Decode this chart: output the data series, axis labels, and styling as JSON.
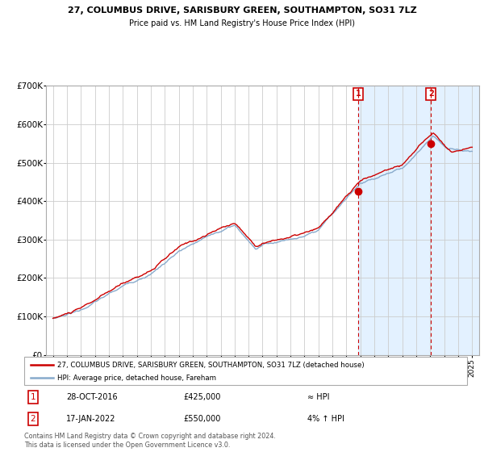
{
  "title": "27, COLUMBUS DRIVE, SARISBURY GREEN, SOUTHAMPTON, SO31 7LZ",
  "subtitle": "Price paid vs. HM Land Registry's House Price Index (HPI)",
  "legend_line1": "27, COLUMBUS DRIVE, SARISBURY GREEN, SOUTHAMPTON, SO31 7LZ (detached house)",
  "legend_line2": "HPI: Average price, detached house, Fareham",
  "annotation1_label": "1",
  "annotation1_date": "28-OCT-2016",
  "annotation1_price": "£425,000",
  "annotation1_hpi": "≈ HPI",
  "annotation2_label": "2",
  "annotation2_date": "17-JAN-2022",
  "annotation2_price": "£550,000",
  "annotation2_hpi": "4% ↑ HPI",
  "footer1": "Contains HM Land Registry data © Crown copyright and database right 2024.",
  "footer2": "This data is licensed under the Open Government Licence v3.0.",
  "hpi_line_color": "#88aacc",
  "price_line_color": "#cc0000",
  "marker_color": "#cc0000",
  "dashed_vline_color": "#cc0000",
  "bg_highlight_color": "#ddeeff",
  "annotation_box_color": "#cc0000",
  "grid_color": "#cccccc",
  "ylim": [
    0,
    700000
  ],
  "yticks": [
    0,
    100000,
    200000,
    300000,
    400000,
    500000,
    600000,
    700000
  ],
  "ytick_labels": [
    "£0",
    "£100K",
    "£200K",
    "£300K",
    "£400K",
    "£500K",
    "£600K",
    "£700K"
  ],
  "sale1_x": 2016.83,
  "sale1_y": 425000,
  "sale2_x": 2022.05,
  "sale2_y": 550000,
  "highlight_start": 2016.83,
  "highlight_end": 2025.5,
  "xmin": 1994.5,
  "xmax": 2025.5
}
